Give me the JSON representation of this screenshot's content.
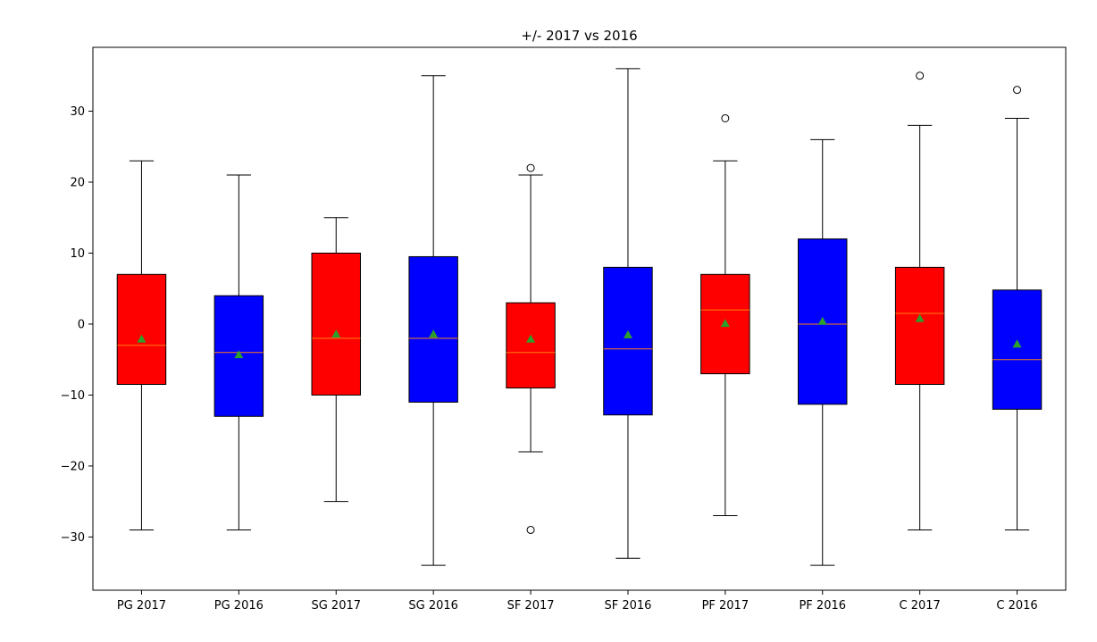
{
  "chart_data": {
    "type": "box",
    "title": "+/- 2017 vs 2016",
    "xlabel": "",
    "ylabel": "",
    "ylim": [
      -37.5,
      39
    ],
    "yticks": [
      -30,
      -20,
      -10,
      0,
      10,
      20,
      30
    ],
    "grid": false,
    "colors": {
      "2017": "#ff0000",
      "2016": "#0000ff",
      "median": "#ff7f0e",
      "mean": "#2ca02c",
      "whisker": "#000000"
    },
    "series": [
      {
        "name": "PG 2017",
        "color": "#ff0000",
        "q1": -8.5,
        "median": -3,
        "q3": 7,
        "whisker_low": -29,
        "whisker_high": 23,
        "mean": -2.1,
        "outliers": []
      },
      {
        "name": "PG 2016",
        "color": "#0000ff",
        "q1": -13,
        "median": -4,
        "q3": 4,
        "whisker_low": -29,
        "whisker_high": 21,
        "mean": -4.3,
        "outliers": []
      },
      {
        "name": "SG 2017",
        "color": "#ff0000",
        "q1": -10,
        "median": -2,
        "q3": 10,
        "whisker_low": -25,
        "whisker_high": 15,
        "mean": -1.4,
        "outliers": []
      },
      {
        "name": "SG 2016",
        "color": "#0000ff",
        "q1": -11,
        "median": -2,
        "q3": 9.5,
        "whisker_low": -34,
        "whisker_high": 35,
        "mean": -1.4,
        "outliers": []
      },
      {
        "name": "SF 2017",
        "color": "#ff0000",
        "q1": -9,
        "median": -4,
        "q3": 3,
        "whisker_low": -18,
        "whisker_high": 21,
        "mean": -2.1,
        "outliers": [
          22,
          -29
        ]
      },
      {
        "name": "SF 2016",
        "color": "#0000ff",
        "q1": -12.8,
        "median": -3.5,
        "q3": 8,
        "whisker_low": -33,
        "whisker_high": 36,
        "mean": -1.5,
        "outliers": []
      },
      {
        "name": "PF 2017",
        "color": "#ff0000",
        "q1": -7,
        "median": 2,
        "q3": 7,
        "whisker_low": -27,
        "whisker_high": 23,
        "mean": 0.1,
        "outliers": [
          29
        ]
      },
      {
        "name": "PF 2016",
        "color": "#0000ff",
        "q1": -11.3,
        "median": 0,
        "q3": 12,
        "whisker_low": -34,
        "whisker_high": 26,
        "mean": 0.4,
        "outliers": []
      },
      {
        "name": "C 2017",
        "color": "#ff0000",
        "q1": -8.5,
        "median": 1.5,
        "q3": 8,
        "whisker_low": -29,
        "whisker_high": 28,
        "mean": 0.8,
        "outliers": [
          35
        ]
      },
      {
        "name": "C 2016",
        "color": "#0000ff",
        "q1": -12,
        "median": -5,
        "q3": 4.8,
        "whisker_low": -29,
        "whisker_high": 29,
        "mean": -2.8,
        "outliers": [
          33
        ]
      }
    ]
  }
}
